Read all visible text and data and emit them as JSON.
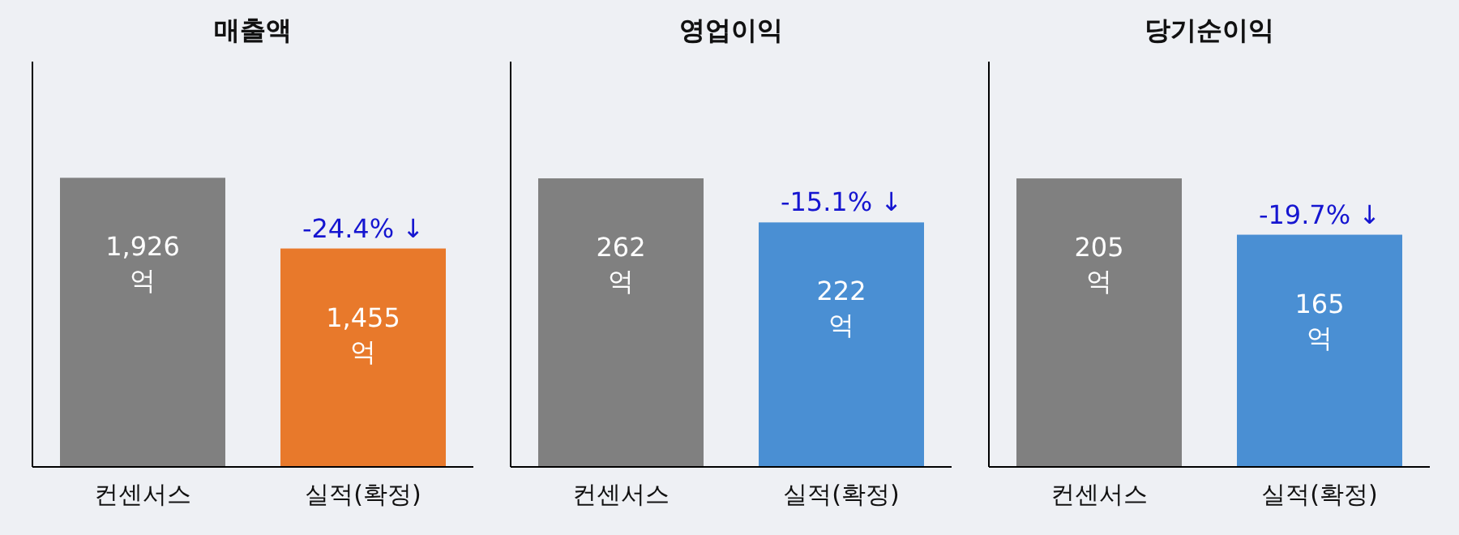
{
  "chart_data": [
    {
      "type": "bar",
      "title": "매출액",
      "categories": [
        "컨센서스",
        "실적(확정)"
      ],
      "values": [
        1926,
        1455
      ],
      "colors": [
        "#808080",
        "#e8792b"
      ],
      "value_labels": [
        "1,926\n억",
        "1,455\n억"
      ],
      "ylim": [
        0,
        2700
      ],
      "tick_labels": "x",
      "annotations": [
        {
          "text": "-24.4%  ↓",
          "x": "실적(확정)",
          "y": 1455
        }
      ]
    },
    {
      "type": "bar",
      "title": "영업이익",
      "categories": [
        "컨센서스",
        "실적(확정)"
      ],
      "values": [
        262,
        222
      ],
      "colors": [
        "#808080",
        "#4a8fd3"
      ],
      "value_labels": [
        "262\n억",
        "222\n억"
      ],
      "ylim": [
        0,
        368
      ],
      "tick_labels": "x",
      "annotations": [
        {
          "text": "-15.1%  ↓",
          "x": "실적(확정)",
          "y": 222
        }
      ]
    },
    {
      "type": "bar",
      "title": "당기순이익",
      "categories": [
        "컨센서스",
        "실적(확정)"
      ],
      "values": [
        205,
        165
      ],
      "colors": [
        "#808080",
        "#4a8fd3"
      ],
      "value_labels": [
        "205\n억",
        "165\n억"
      ],
      "ylim": [
        0,
        288
      ],
      "tick_labels": "x",
      "annotations": [
        {
          "text": "-19.7%  ↓",
          "x": "실적(확정)",
          "y": 165
        }
      ]
    }
  ]
}
